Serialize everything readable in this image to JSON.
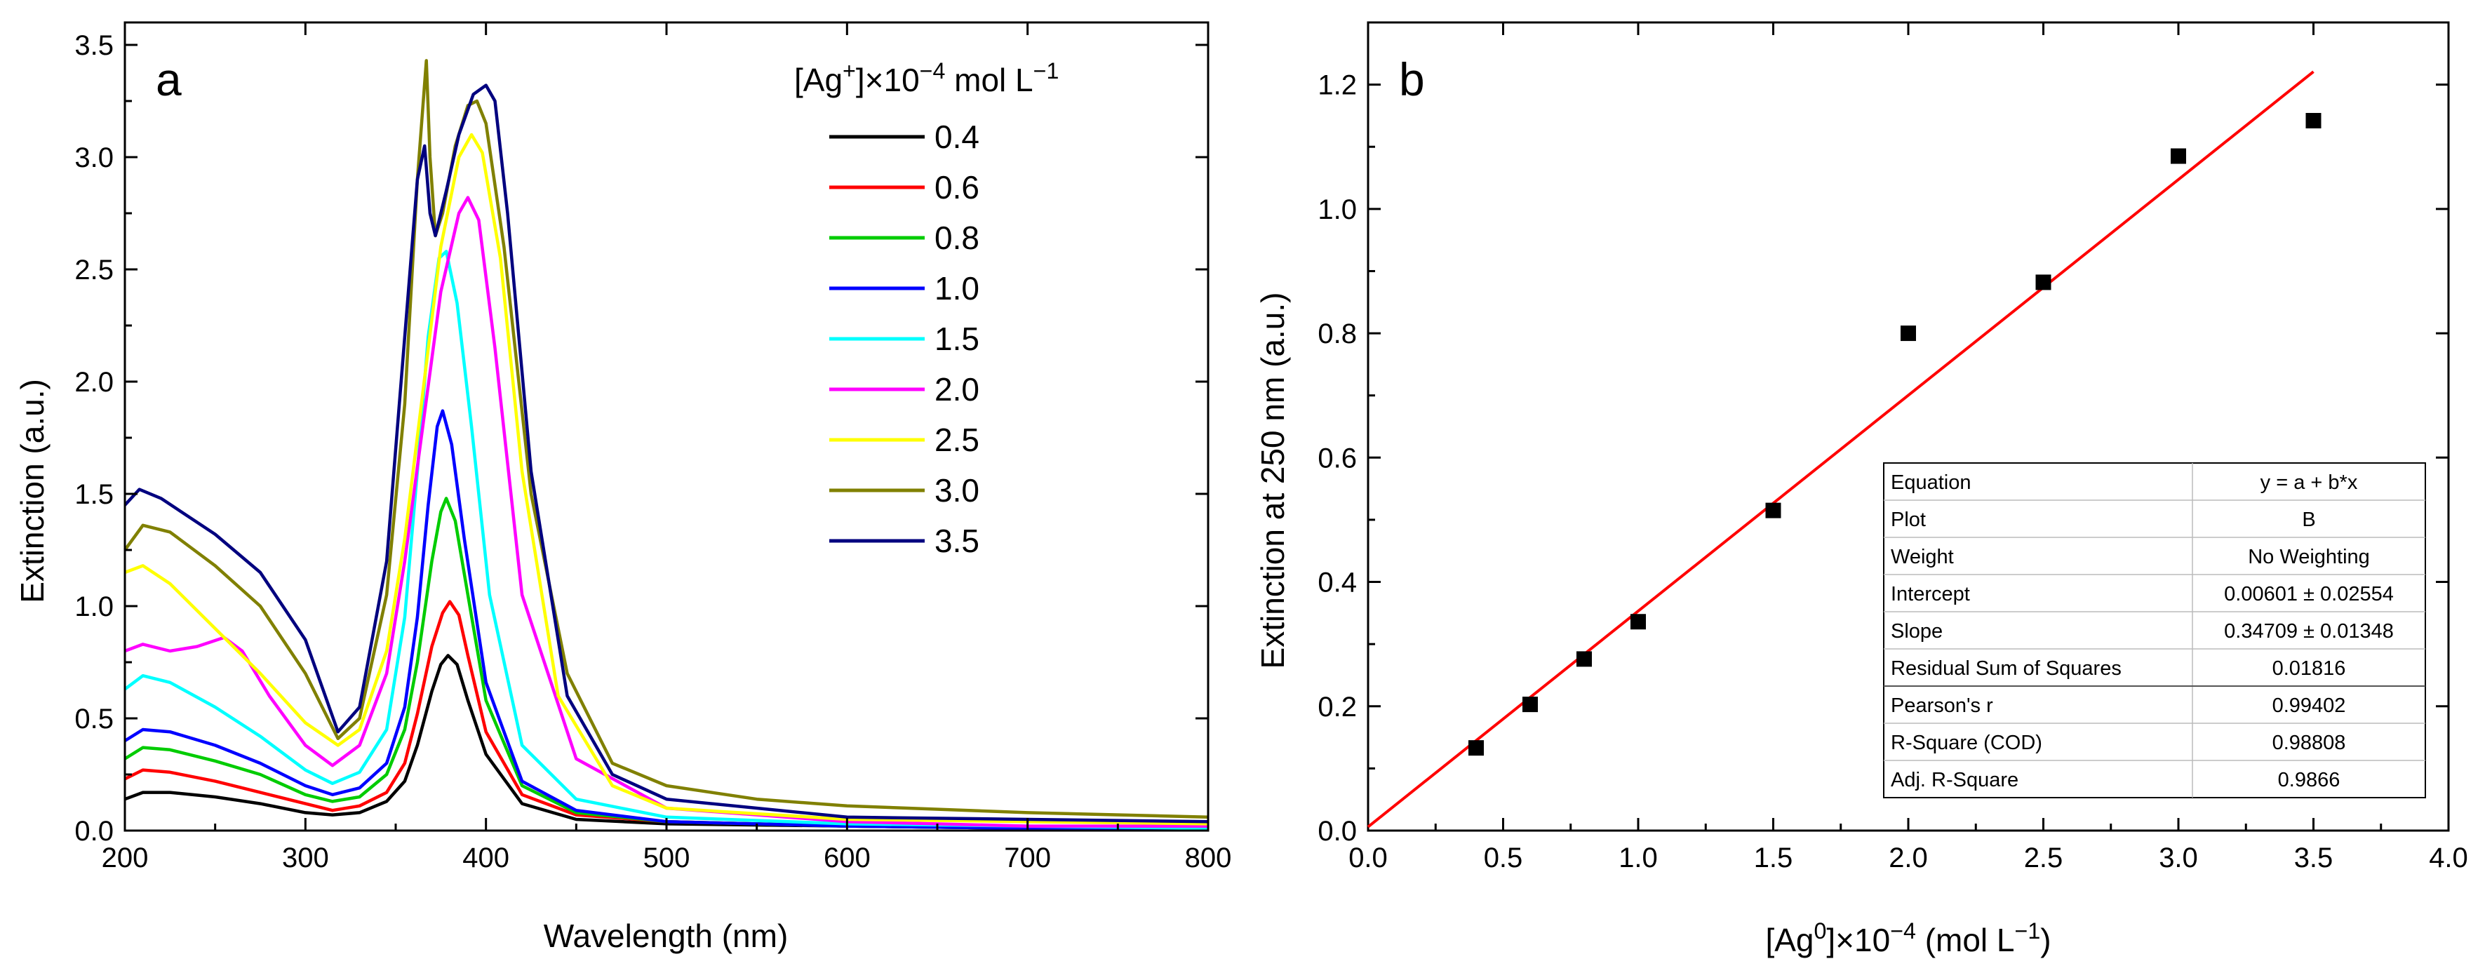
{
  "chart_data": [
    {
      "panel": "a",
      "type": "line",
      "xlabel": "Wavelength (nm)",
      "ylabel": "Extinction (a.u.)",
      "xlim": [
        200,
        800
      ],
      "ylim": [
        0,
        3.6
      ],
      "xticks": [
        200,
        300,
        400,
        500,
        600,
        700,
        800
      ],
      "yticks": [
        0.0,
        0.5,
        1.0,
        1.5,
        2.0,
        2.5,
        3.0,
        3.5
      ],
      "legend_title": {
        "prefix": "[Ag",
        "sup1": "+",
        "mid": "]×10",
        "sup2": "−4",
        "suffix": " mol L",
        "sup3": "−1"
      },
      "series": [
        {
          "name": "0.4",
          "color": "#000000",
          "x": [
            200,
            210,
            225,
            250,
            275,
            300,
            315,
            330,
            345,
            355,
            362,
            370,
            375,
            379,
            384,
            390,
            400,
            420,
            450,
            500,
            600,
            700,
            800
          ],
          "y": [
            0.14,
            0.17,
            0.17,
            0.15,
            0.12,
            0.08,
            0.07,
            0.08,
            0.13,
            0.22,
            0.38,
            0.62,
            0.74,
            0.78,
            0.74,
            0.58,
            0.34,
            0.12,
            0.05,
            0.03,
            0.02,
            0.01,
            0.01
          ]
        },
        {
          "name": "0.6",
          "color": "#ff0000",
          "x": [
            200,
            210,
            225,
            250,
            275,
            300,
            315,
            330,
            345,
            355,
            362,
            370,
            376,
            380,
            385,
            390,
            400,
            420,
            450,
            500,
            600,
            700,
            800
          ],
          "y": [
            0.23,
            0.27,
            0.26,
            0.22,
            0.17,
            0.12,
            0.09,
            0.11,
            0.17,
            0.3,
            0.52,
            0.82,
            0.97,
            1.02,
            0.96,
            0.78,
            0.44,
            0.16,
            0.07,
            0.04,
            0.02,
            0.01,
            0.01
          ]
        },
        {
          "name": "0.8",
          "color": "#00cc00",
          "x": [
            200,
            210,
            225,
            250,
            275,
            300,
            315,
            330,
            345,
            355,
            362,
            370,
            375,
            378,
            383,
            390,
            400,
            420,
            450,
            500,
            600,
            700,
            800
          ],
          "y": [
            0.32,
            0.37,
            0.36,
            0.31,
            0.25,
            0.16,
            0.13,
            0.15,
            0.25,
            0.45,
            0.75,
            1.2,
            1.42,
            1.48,
            1.38,
            1.05,
            0.58,
            0.2,
            0.08,
            0.04,
            0.02,
            0.01,
            0.01
          ]
        },
        {
          "name": "1.0",
          "color": "#0000ff",
          "x": [
            200,
            210,
            225,
            250,
            275,
            300,
            315,
            330,
            345,
            355,
            362,
            368,
            373,
            376,
            381,
            388,
            400,
            420,
            450,
            500,
            600,
            700,
            800
          ],
          "y": [
            0.4,
            0.45,
            0.44,
            0.38,
            0.3,
            0.2,
            0.16,
            0.19,
            0.3,
            0.55,
            0.95,
            1.45,
            1.8,
            1.87,
            1.72,
            1.3,
            0.66,
            0.22,
            0.09,
            0.04,
            0.02,
            0.01,
            0.01
          ]
        },
        {
          "name": "1.5",
          "color": "#00ffff",
          "x": [
            200,
            210,
            225,
            250,
            275,
            300,
            315,
            330,
            345,
            355,
            362,
            368,
            374,
            378,
            384,
            392,
            402,
            420,
            450,
            500,
            600,
            700,
            800
          ],
          "y": [
            0.63,
            0.69,
            0.66,
            0.55,
            0.42,
            0.27,
            0.21,
            0.26,
            0.45,
            0.95,
            1.6,
            2.2,
            2.55,
            2.58,
            2.35,
            1.8,
            1.05,
            0.38,
            0.14,
            0.06,
            0.03,
            0.02,
            0.01
          ]
        },
        {
          "name": "2.0",
          "color": "#ff00ff",
          "x": [
            200,
            210,
            225,
            240,
            255,
            265,
            280,
            300,
            315,
            330,
            345,
            355,
            365,
            375,
            385,
            390,
            396,
            405,
            420,
            450,
            500,
            600,
            700,
            800
          ],
          "y": [
            0.8,
            0.83,
            0.8,
            0.82,
            0.86,
            0.8,
            0.6,
            0.38,
            0.29,
            0.38,
            0.7,
            1.2,
            1.8,
            2.4,
            2.75,
            2.82,
            2.72,
            2.15,
            1.05,
            0.32,
            0.1,
            0.04,
            0.02,
            0.02
          ]
        },
        {
          "name": "2.5",
          "color": "#ffff00",
          "x": [
            200,
            210,
            225,
            250,
            275,
            300,
            318,
            330,
            345,
            355,
            365,
            375,
            385,
            392,
            398,
            408,
            420,
            440,
            470,
            500,
            600,
            700,
            800
          ],
          "y": [
            1.15,
            1.18,
            1.1,
            0.9,
            0.7,
            0.48,
            0.38,
            0.45,
            0.8,
            1.3,
            1.95,
            2.6,
            3.0,
            3.1,
            3.02,
            2.55,
            1.6,
            0.6,
            0.2,
            0.1,
            0.05,
            0.04,
            0.03
          ]
        },
        {
          "name": "3.0",
          "color": "#808000",
          "x": [
            200,
            210,
            225,
            250,
            275,
            300,
            318,
            330,
            345,
            355,
            362,
            367,
            369,
            372,
            376,
            383,
            390,
            395,
            400,
            410,
            425,
            445,
            470,
            500,
            550,
            600,
            700,
            800
          ],
          "y": [
            1.25,
            1.36,
            1.33,
            1.18,
            1.0,
            0.7,
            0.41,
            0.5,
            1.05,
            1.9,
            2.9,
            3.43,
            3.0,
            2.65,
            2.75,
            3.05,
            3.23,
            3.25,
            3.15,
            2.6,
            1.5,
            0.7,
            0.3,
            0.2,
            0.14,
            0.11,
            0.08,
            0.06
          ]
        },
        {
          "name": "3.5",
          "color": "#00007f",
          "x": [
            200,
            208,
            220,
            250,
            275,
            300,
            318,
            330,
            345,
            355,
            362,
            366,
            369,
            372,
            378,
            385,
            393,
            400,
            405,
            412,
            425,
            445,
            470,
            500,
            600,
            700,
            800
          ],
          "y": [
            1.45,
            1.52,
            1.48,
            1.32,
            1.15,
            0.85,
            0.44,
            0.55,
            1.2,
            2.2,
            2.9,
            3.05,
            2.75,
            2.65,
            2.85,
            3.1,
            3.28,
            3.32,
            3.25,
            2.75,
            1.6,
            0.6,
            0.25,
            0.14,
            0.06,
            0.05,
            0.04
          ]
        }
      ]
    },
    {
      "panel": "b",
      "type": "scatter",
      "xlabel": {
        "prefix": "[Ag",
        "sup1": "0",
        "mid": "]×10",
        "sup2": "−4",
        "suffix": " (mol L",
        "sup3": "−1",
        "end": ")"
      },
      "ylabel": "Extinction at 250 nm (a.u.)",
      "xlim": [
        0,
        4.0
      ],
      "ylim": [
        0,
        1.3
      ],
      "xticks": [
        0.0,
        0.5,
        1.0,
        1.5,
        2.0,
        2.5,
        3.0,
        3.5,
        4.0
      ],
      "yticks": [
        0.0,
        0.2,
        0.4,
        0.6,
        0.8,
        1.0,
        1.2
      ],
      "points": {
        "x": [
          0.4,
          0.6,
          0.8,
          1.0,
          1.5,
          2.0,
          2.5,
          3.0,
          3.5
        ],
        "y": [
          0.133,
          0.203,
          0.276,
          0.336,
          0.515,
          0.8,
          0.882,
          1.085,
          1.142
        ]
      },
      "fit": {
        "intercept": 0.00601,
        "slope": 0.34709,
        "x_range": [
          0,
          3.5
        ],
        "color": "#ff0000"
      },
      "fit_table": [
        [
          "Equation",
          "y = a + b*x"
        ],
        [
          "Plot",
          "B"
        ],
        [
          "Weight",
          "No Weighting"
        ],
        [
          "Intercept",
          "0.00601 ± 0.02554"
        ],
        [
          "Slope",
          "0.34709 ± 0.01348"
        ],
        [
          "Residual Sum of Squares",
          "0.01816"
        ],
        [
          "Pearson's r",
          "0.99402"
        ],
        [
          "R-Square (COD)",
          "0.98808"
        ],
        [
          "Adj. R-Square",
          "0.9866"
        ]
      ]
    }
  ],
  "panel_a": {
    "letter": "a",
    "xlabel": "Wavelength (nm)",
    "ylabel": "Extinction (a.u.)"
  },
  "panel_b": {
    "letter": "b",
    "ylabel": "Extinction at 250 nm (a.u.)"
  }
}
